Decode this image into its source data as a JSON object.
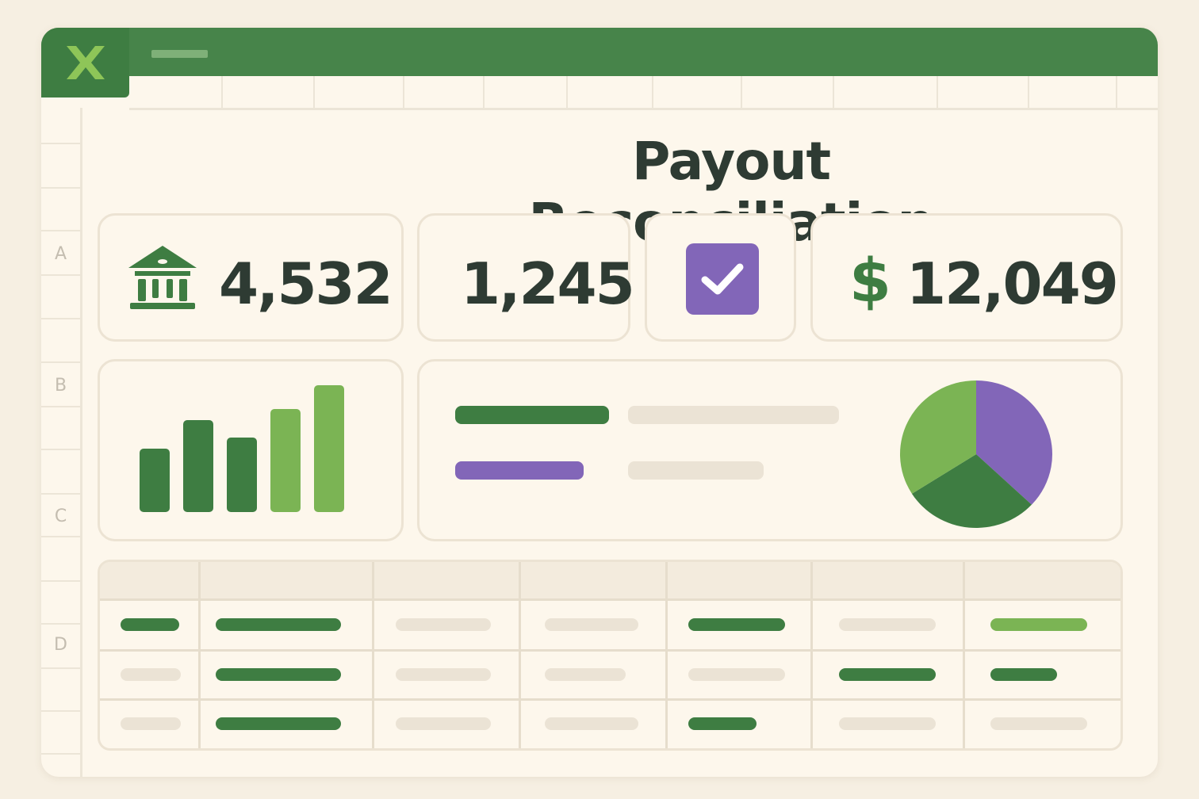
{
  "app": {
    "logo_icon": "excel-x-icon",
    "logo_letter": "X"
  },
  "sheet": {
    "title": "Payout Reconciliation",
    "row_labels": [
      "A",
      "B",
      "C",
      "D"
    ]
  },
  "kpis": [
    {
      "icon": "bank-icon",
      "value": "4,532"
    },
    {
      "icon": "",
      "value": "1,245"
    },
    {
      "icon": "checkbox-checked-icon",
      "value": ""
    },
    {
      "icon": "dollar-icon",
      "prefix": "$",
      "value": "12,049"
    }
  ],
  "colors": {
    "green_dark": "#3e7d42",
    "green_light": "#7bb454",
    "purple": "#8266b8",
    "placeholder": "#ebe3d5",
    "text": "#2e3b33"
  },
  "chart_data": [
    {
      "type": "bar",
      "categories": [
        "",
        "",
        "",
        "",
        ""
      ],
      "values": [
        80,
        116,
        94,
        130,
        160
      ],
      "ylim": [
        0,
        170
      ],
      "bar_colors": [
        "#3e7d42",
        "#3e7d42",
        "#3e7d42",
        "#7bb454",
        "#7bb454"
      ],
      "title": "",
      "xlabel": "",
      "ylabel": ""
    },
    {
      "type": "pie",
      "values": [
        37,
        29,
        34
      ],
      "slice_colors": [
        "#8266b8",
        "#3e7d42",
        "#7bb454"
      ],
      "title": ""
    }
  ]
}
